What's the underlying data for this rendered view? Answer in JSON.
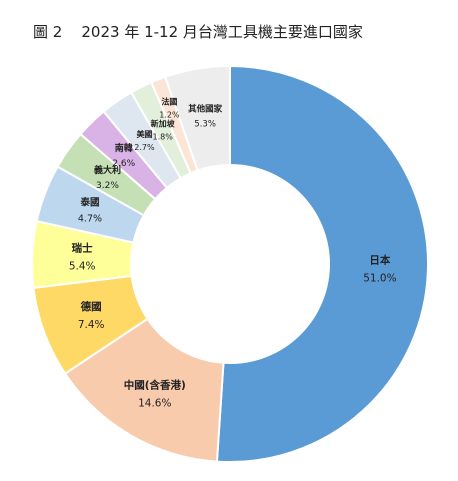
{
  "title": "圖 2    2023 年 1-12 月台灣工具機主要進口國家",
  "chart_data": {
    "type": "donut",
    "title": "圖 2    2023 年 1-12 月台灣工具機主要進口國家",
    "unit": "%",
    "slices": [
      {
        "label": "日本",
        "value": 51.0,
        "value_text": "51.0%",
        "color": "#5b9bd5"
      },
      {
        "label": "中國(含香港)",
        "value": 14.6,
        "value_text": "14.6%",
        "color": "#f8cbad"
      },
      {
        "label": "德國",
        "value": 7.4,
        "value_text": "7.4%",
        "color": "#ffd966"
      },
      {
        "label": "瑞士",
        "value": 5.4,
        "value_text": "5.4%",
        "color": "#ffff99"
      },
      {
        "label": "泰國",
        "value": 4.7,
        "value_text": "4.7%",
        "color": "#bdd7ee"
      },
      {
        "label": "義大利",
        "value": 3.2,
        "value_text": "3.2%",
        "color": "#c5e0b4"
      },
      {
        "label": "南韓",
        "value": 2.6,
        "value_text": "2.6%",
        "color": "#d9b3e6"
      },
      {
        "label": "美國",
        "value": 2.7,
        "value_text": "2.7%",
        "color": "#dee6f0"
      },
      {
        "label": "新加坡",
        "value": 1.8,
        "value_text": "1.8%",
        "color": "#e2efda"
      },
      {
        "label": "法國",
        "value": 1.2,
        "value_text": "1.2%",
        "color": "#fbe5d6"
      },
      {
        "label": "其他國家",
        "value": 5.3,
        "value_text": "5.3%",
        "color": "#ededed"
      }
    ]
  }
}
